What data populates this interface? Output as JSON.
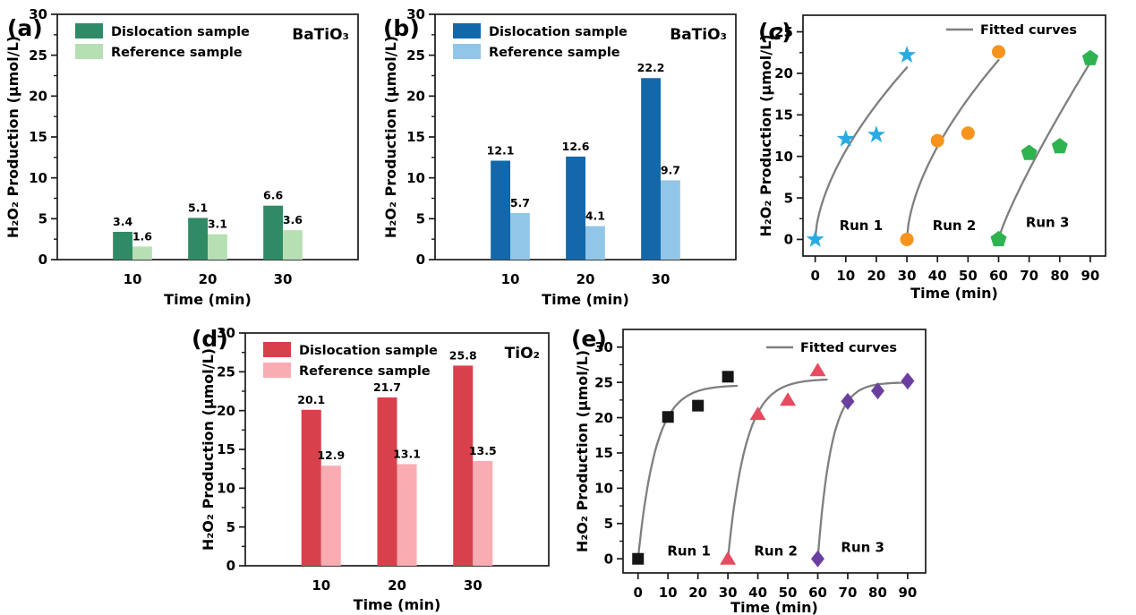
{
  "figure": {
    "background": "#ffffff",
    "axis_color": "#1a1a1a",
    "fitted_curve_color": "#7f7f7f"
  },
  "chart_data": [
    {
      "panel_label": "(a)",
      "type": "bar",
      "title": "BaTiO₃",
      "xlabel": "Time (min)",
      "ylabel": "H₂O₂ Production (μmol/L)",
      "categories": [
        10,
        20,
        30
      ],
      "xlim": [
        0,
        40
      ],
      "ylim": [
        0,
        30
      ],
      "yticks": [
        0,
        5,
        10,
        15,
        20,
        25,
        30
      ],
      "grid": false,
      "legend_position": "top-left",
      "series": [
        {
          "name": "Dislocation sample",
          "color": "#2F8B66",
          "values": [
            3.4,
            5.1,
            6.6
          ]
        },
        {
          "name": "Reference sample",
          "color": "#B6DFB3",
          "values": [
            1.6,
            3.1,
            3.6
          ]
        }
      ]
    },
    {
      "panel_label": "(b)",
      "type": "bar",
      "title": "BaTiO₃",
      "xlabel": "Time (min)",
      "ylabel": "H₂O₂ Production (μmol/L)",
      "categories": [
        10,
        20,
        30
      ],
      "xlim": [
        0,
        40
      ],
      "ylim": [
        0,
        30
      ],
      "yticks": [
        0,
        5,
        10,
        15,
        20,
        25,
        30
      ],
      "grid": false,
      "legend_position": "top-left",
      "series": [
        {
          "name": "Dislocation sample",
          "color": "#1268A9",
          "values": [
            12.1,
            12.6,
            22.2
          ]
        },
        {
          "name": "Reference sample",
          "color": "#92C6E9",
          "values": [
            5.7,
            4.1,
            9.7
          ]
        }
      ]
    },
    {
      "panel_label": "(c)",
      "type": "scatter",
      "title": "",
      "xlabel": "Time (min)",
      "ylabel": "H₂O₂ Production (μmol/L)",
      "xlim": [
        -4,
        95
      ],
      "ylim": [
        -2,
        27
      ],
      "xticks": [
        0,
        10,
        20,
        30,
        40,
        50,
        60,
        70,
        80,
        90
      ],
      "yticks": [
        0,
        5,
        10,
        15,
        20,
        25
      ],
      "grid": false,
      "legend_label": "Fitted curves",
      "legend_position": "top-right",
      "series": [
        {
          "name": "Run 1",
          "marker": "star",
          "color": "#29ABE2",
          "points": [
            [
              0,
              0
            ],
            [
              10,
              12.1
            ],
            [
              20,
              12.6
            ],
            [
              30,
              22.2
            ]
          ],
          "label_xy": [
            15,
            1.1
          ],
          "fit": {
            "kind": "power",
            "x0": 0,
            "span": 30,
            "amplitude": 20.7,
            "exponent": 0.6
          }
        },
        {
          "name": "Run 2",
          "marker": "circle",
          "color": "#F7941E",
          "points": [
            [
              30,
              0
            ],
            [
              40,
              11.9
            ],
            [
              50,
              12.8
            ],
            [
              60,
              22.6
            ]
          ],
          "label_xy": [
            45.5,
            1.1
          ],
          "fit": {
            "kind": "power",
            "x0": 30,
            "span": 30,
            "amplitude": 21.6,
            "exponent": 0.6
          }
        },
        {
          "name": "Run 3",
          "marker": "pentagon",
          "color": "#2FB34F",
          "points": [
            [
              60,
              0
            ],
            [
              70,
              10.4
            ],
            [
              80,
              11.2
            ],
            [
              90,
              21.8
            ]
          ],
          "label_xy": [
            76,
            1.5
          ],
          "fit": {
            "kind": "power",
            "x0": 60,
            "span": 30,
            "amplitude": 21.3,
            "exponent": 0.85
          }
        }
      ]
    },
    {
      "panel_label": "(d)",
      "type": "bar",
      "title": "TiO₂",
      "xlabel": "Time (min)",
      "ylabel": "H₂O₂ Production (μmol/L)",
      "categories": [
        10,
        20,
        30
      ],
      "xlim": [
        0,
        40
      ],
      "ylim": [
        0,
        30
      ],
      "yticks": [
        0,
        5,
        10,
        15,
        20,
        25,
        30
      ],
      "grid": false,
      "legend_position": "top-left",
      "series": [
        {
          "name": "Dislocation sample",
          "color": "#D8414B",
          "values": [
            20.1,
            21.7,
            25.8
          ]
        },
        {
          "name": "Reference sample",
          "color": "#F9ACB2",
          "values": [
            12.9,
            13.1,
            13.5
          ]
        }
      ]
    },
    {
      "panel_label": "(e)",
      "type": "scatter",
      "title": "",
      "xlabel": "Time (min)",
      "ylabel": "H₂O₂ Production (μmol/L)",
      "xlim": [
        -5,
        96
      ],
      "ylim": [
        -2,
        32.5
      ],
      "xticks": [
        0,
        10,
        20,
        30,
        40,
        50,
        60,
        70,
        80,
        90
      ],
      "yticks": [
        0,
        5,
        10,
        15,
        20,
        25,
        30
      ],
      "grid": false,
      "legend_label": "Fitted curves",
      "legend_position": "top-right",
      "series": [
        {
          "name": "Run 1",
          "marker": "square",
          "color": "#151515",
          "points": [
            [
              0,
              0
            ],
            [
              10,
              20.1
            ],
            [
              20,
              21.7
            ],
            [
              30,
              25.8
            ]
          ],
          "label_xy": [
            17,
            0.5
          ],
          "fit": {
            "kind": "saturation",
            "x0": 0,
            "tau": 5.9,
            "amplitude": 24.6,
            "extent": 33
          }
        },
        {
          "name": "Run 2",
          "marker": "triangle",
          "color": "#E84A5F",
          "points": [
            [
              30,
              0
            ],
            [
              40,
              20.5
            ],
            [
              50,
              22.5
            ],
            [
              60,
              26.7
            ]
          ],
          "label_xy": [
            46,
            0.5
          ],
          "fit": {
            "kind": "saturation",
            "x0": 30,
            "tau": 6.0,
            "amplitude": 25.5,
            "extent": 33
          }
        },
        {
          "name": "Run 3",
          "marker": "diamond",
          "color": "#6B3FA0",
          "points": [
            [
              60,
              0
            ],
            [
              70,
              22.3
            ],
            [
              80,
              23.8
            ],
            [
              90,
              25.2
            ]
          ],
          "label_xy": [
            75,
            1.0
          ],
          "fit": {
            "kind": "saturation",
            "x0": 60,
            "tau": 4.5,
            "amplitude": 25.0,
            "extent": 30
          }
        }
      ]
    }
  ]
}
